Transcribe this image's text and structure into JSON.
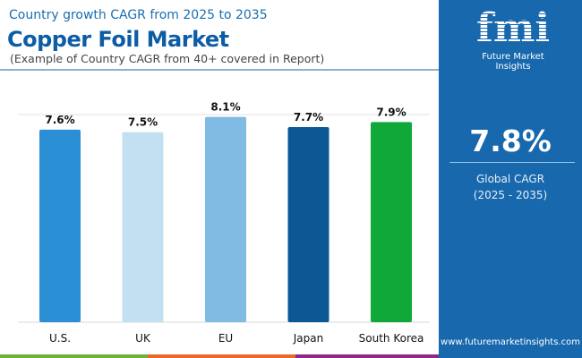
{
  "header": {
    "subtitle": "Country growth CAGR from 2025 to 2035",
    "title": "Copper Foil Market",
    "note": "(Example of Country CAGR from 40+ covered in Report)"
  },
  "panel": {
    "logo_text": "fmi",
    "logo_caption": "Future Market Insights",
    "global_cagr": "7.8%",
    "global_label": "Global CAGR",
    "global_period": "(2025 - 2035)",
    "url": "www.futuremarketinsights.com",
    "background": "#1868ad"
  },
  "chart_data": {
    "type": "bar",
    "title": "",
    "xlabel": "",
    "ylabel": "",
    "ylim": [
      0,
      8.3
    ],
    "grid": true,
    "categories": [
      "U.S.",
      "UK",
      "EU",
      "Japan",
      "South Korea"
    ],
    "values": [
      7.6,
      7.5,
      8.1,
      7.7,
      7.9
    ],
    "labels": [
      "7.6%",
      "7.5%",
      "8.1%",
      "7.7%",
      "7.9%"
    ],
    "colors": [
      "#2b8fd6",
      "#c3e0f2",
      "#7fbbe2",
      "#0b5894",
      "#11a83a"
    ]
  }
}
